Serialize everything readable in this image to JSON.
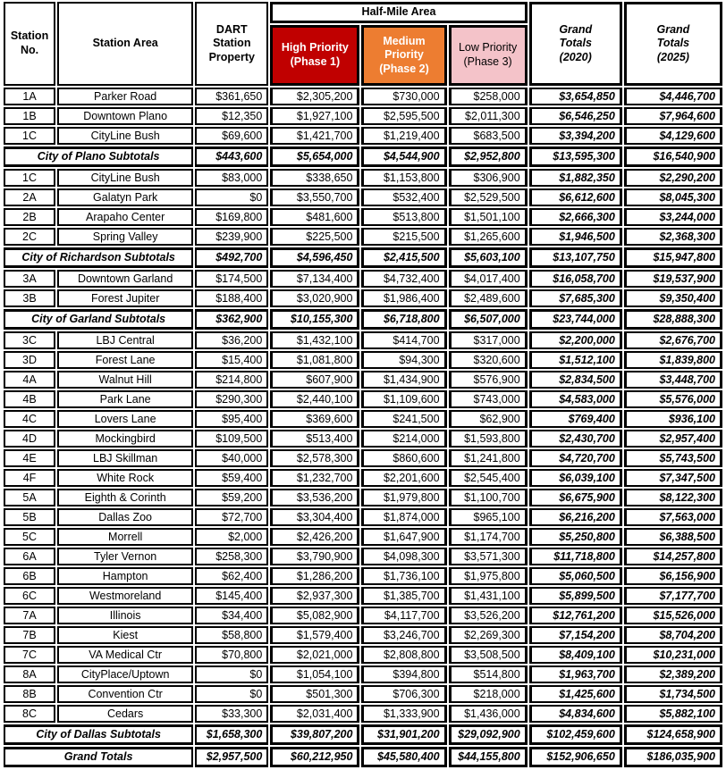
{
  "colors": {
    "high_priority_bg": "#C00000",
    "medium_priority_bg": "#ED7D31",
    "low_priority_bg": "#F4C3C9",
    "priority_text_light": "#FFFFFF",
    "priority_text_dark": "#000000",
    "border": "#000000"
  },
  "header": {
    "station_no": "Station\nNo.",
    "station_area": "Station Area",
    "dart_property": "DART\nStation\nProperty",
    "half_mile_area": "Half-Mile Area",
    "high_priority": "High Priority\n(Phase 1)",
    "medium_priority": "Medium\nPriority\n(Phase 2)",
    "low_priority": "Low Priority\n(Phase 3)",
    "grand_totals_2020": "Grand\nTotals\n(2020)",
    "grand_totals_2025": "Grand\nTotals\n(2025)"
  },
  "rows": [
    {
      "type": "station",
      "no": "1A",
      "area": "Parker Road",
      "values": [
        "$361,650",
        "$2,305,200",
        "$730,000",
        "$258,000",
        "$3,654,850",
        "$4,446,700"
      ]
    },
    {
      "type": "station",
      "no": "1B",
      "area": "Downtown Plano",
      "values": [
        "$12,350",
        "$1,927,100",
        "$2,595,500",
        "$2,011,300",
        "$6,546,250",
        "$7,964,600"
      ]
    },
    {
      "type": "station",
      "no": "1C",
      "area": "CityLine Bush",
      "values": [
        "$69,600",
        "$1,421,700",
        "$1,219,400",
        "$683,500",
        "$3,394,200",
        "$4,129,600"
      ]
    },
    {
      "type": "subtotal",
      "label": "City of Plano Subtotals",
      "values": [
        "$443,600",
        "$5,654,000",
        "$4,544,900",
        "$2,952,800",
        "$13,595,300",
        "$16,540,900"
      ]
    },
    {
      "type": "station",
      "no": "1C",
      "area": "CityLine Bush",
      "values": [
        "$83,000",
        "$338,650",
        "$1,153,800",
        "$306,900",
        "$1,882,350",
        "$2,290,200"
      ]
    },
    {
      "type": "station",
      "no": "2A",
      "area": "Galatyn Park",
      "values": [
        "$0",
        "$3,550,700",
        "$532,400",
        "$2,529,500",
        "$6,612,600",
        "$8,045,300"
      ]
    },
    {
      "type": "station",
      "no": "2B",
      "area": "Arapaho Center",
      "values": [
        "$169,800",
        "$481,600",
        "$513,800",
        "$1,501,100",
        "$2,666,300",
        "$3,244,000"
      ]
    },
    {
      "type": "station",
      "no": "2C",
      "area": "Spring Valley",
      "values": [
        "$239,900",
        "$225,500",
        "$215,500",
        "$1,265,600",
        "$1,946,500",
        "$2,368,300"
      ]
    },
    {
      "type": "subtotal",
      "label": "City of Richardson Subtotals",
      "values": [
        "$492,700",
        "$4,596,450",
        "$2,415,500",
        "$5,603,100",
        "$13,107,750",
        "$15,947,800"
      ]
    },
    {
      "type": "station",
      "no": "3A",
      "area": "Downtown Garland",
      "values": [
        "$174,500",
        "$7,134,400",
        "$4,732,400",
        "$4,017,400",
        "$16,058,700",
        "$19,537,900"
      ]
    },
    {
      "type": "station",
      "no": "3B",
      "area": "Forest Jupiter",
      "values": [
        "$188,400",
        "$3,020,900",
        "$1,986,400",
        "$2,489,600",
        "$7,685,300",
        "$9,350,400"
      ]
    },
    {
      "type": "subtotal",
      "label": "City of Garland Subtotals",
      "values": [
        "$362,900",
        "$10,155,300",
        "$6,718,800",
        "$6,507,000",
        "$23,744,000",
        "$28,888,300"
      ]
    },
    {
      "type": "station",
      "no": "3C",
      "area": "LBJ Central",
      "values": [
        "$36,200",
        "$1,432,100",
        "$414,700",
        "$317,000",
        "$2,200,000",
        "$2,676,700"
      ]
    },
    {
      "type": "station",
      "no": "3D",
      "area": "Forest Lane",
      "values": [
        "$15,400",
        "$1,081,800",
        "$94,300",
        "$320,600",
        "$1,512,100",
        "$1,839,800"
      ]
    },
    {
      "type": "station",
      "no": "4A",
      "area": "Walnut Hill",
      "values": [
        "$214,800",
        "$607,900",
        "$1,434,900",
        "$576,900",
        "$2,834,500",
        "$3,448,700"
      ]
    },
    {
      "type": "station",
      "no": "4B",
      "area": "Park Lane",
      "values": [
        "$290,300",
        "$2,440,100",
        "$1,109,600",
        "$743,000",
        "$4,583,000",
        "$5,576,000"
      ]
    },
    {
      "type": "station",
      "no": "4C",
      "area": "Lovers Lane",
      "values": [
        "$95,400",
        "$369,600",
        "$241,500",
        "$62,900",
        "$769,400",
        "$936,100"
      ]
    },
    {
      "type": "station",
      "no": "4D",
      "area": "Mockingbird",
      "values": [
        "$109,500",
        "$513,400",
        "$214,000",
        "$1,593,800",
        "$2,430,700",
        "$2,957,400"
      ]
    },
    {
      "type": "station",
      "no": "4E",
      "area": "LBJ Skillman",
      "values": [
        "$40,000",
        "$2,578,300",
        "$860,600",
        "$1,241,800",
        "$4,720,700",
        "$5,743,500"
      ]
    },
    {
      "type": "station",
      "no": "4F",
      "area": "White Rock",
      "values": [
        "$59,400",
        "$1,232,700",
        "$2,201,600",
        "$2,545,400",
        "$6,039,100",
        "$7,347,500"
      ]
    },
    {
      "type": "station",
      "no": "5A",
      "area": "Eighth & Corinth",
      "values": [
        "$59,200",
        "$3,536,200",
        "$1,979,800",
        "$1,100,700",
        "$6,675,900",
        "$8,122,300"
      ]
    },
    {
      "type": "station",
      "no": "5B",
      "area": "Dallas Zoo",
      "values": [
        "$72,700",
        "$3,304,400",
        "$1,874,000",
        "$965,100",
        "$6,216,200",
        "$7,563,000"
      ]
    },
    {
      "type": "station",
      "no": "5C",
      "area": "Morrell",
      "values": [
        "$2,000",
        "$2,426,200",
        "$1,647,900",
        "$1,174,700",
        "$5,250,800",
        "$6,388,500"
      ]
    },
    {
      "type": "station",
      "no": "6A",
      "area": "Tyler Vernon",
      "values": [
        "$258,300",
        "$3,790,900",
        "$4,098,300",
        "$3,571,300",
        "$11,718,800",
        "$14,257,800"
      ]
    },
    {
      "type": "station",
      "no": "6B",
      "area": "Hampton",
      "values": [
        "$62,400",
        "$1,286,200",
        "$1,736,100",
        "$1,975,800",
        "$5,060,500",
        "$6,156,900"
      ]
    },
    {
      "type": "station",
      "no": "6C",
      "area": "Westmoreland",
      "values": [
        "$145,400",
        "$2,937,300",
        "$1,385,700",
        "$1,431,100",
        "$5,899,500",
        "$7,177,700"
      ]
    },
    {
      "type": "station",
      "no": "7A",
      "area": "Illinois",
      "values": [
        "$34,400",
        "$5,082,900",
        "$4,117,700",
        "$3,526,200",
        "$12,761,200",
        "$15,526,000"
      ]
    },
    {
      "type": "station",
      "no": "7B",
      "area": "Kiest",
      "values": [
        "$58,800",
        "$1,579,400",
        "$3,246,700",
        "$2,269,300",
        "$7,154,200",
        "$8,704,200"
      ]
    },
    {
      "type": "station",
      "no": "7C",
      "area": "VA Medical Ctr",
      "values": [
        "$70,800",
        "$2,021,000",
        "$2,808,800",
        "$3,508,500",
        "$8,409,100",
        "$10,231,000"
      ]
    },
    {
      "type": "station",
      "no": "8A",
      "area": "CityPlace/Uptown",
      "values": [
        "$0",
        "$1,054,100",
        "$394,800",
        "$514,800",
        "$1,963,700",
        "$2,389,200"
      ]
    },
    {
      "type": "station",
      "no": "8B",
      "area": "Convention Ctr",
      "values": [
        "$0",
        "$501,300",
        "$706,300",
        "$218,000",
        "$1,425,600",
        "$1,734,500"
      ]
    },
    {
      "type": "station",
      "no": "8C",
      "area": "Cedars",
      "values": [
        "$33,300",
        "$2,031,400",
        "$1,333,900",
        "$1,436,000",
        "$4,834,600",
        "$5,882,100"
      ]
    },
    {
      "type": "subtotal",
      "label": "City of Dallas Subtotals",
      "values": [
        "$1,658,300",
        "$39,807,200",
        "$31,901,200",
        "$29,092,900",
        "$102,459,600",
        "$124,658,900"
      ]
    },
    {
      "type": "grand",
      "label": "Grand Totals",
      "values": [
        "$2,957,500",
        "$60,212,950",
        "$45,580,400",
        "$44,155,800",
        "$152,906,650",
        "$186,035,900"
      ]
    }
  ]
}
